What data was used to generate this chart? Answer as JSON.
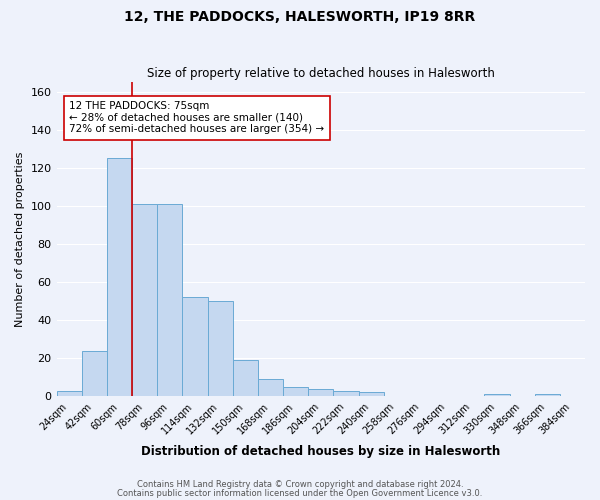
{
  "title": "12, THE PADDOCKS, HALESWORTH, IP19 8RR",
  "subtitle": "Size of property relative to detached houses in Halesworth",
  "xlabel": "Distribution of detached houses by size in Halesworth",
  "ylabel": "Number of detached properties",
  "footnote1": "Contains HM Land Registry data © Crown copyright and database right 2024.",
  "footnote2": "Contains public sector information licensed under the Open Government Licence v3.0.",
  "categories": [
    "24sqm",
    "42sqm",
    "60sqm",
    "78sqm",
    "96sqm",
    "114sqm",
    "132sqm",
    "150sqm",
    "168sqm",
    "186sqm",
    "204sqm",
    "222sqm",
    "240sqm",
    "258sqm",
    "276sqm",
    "294sqm",
    "312sqm",
    "330sqm",
    "348sqm",
    "366sqm",
    "384sqm"
  ],
  "values": [
    3,
    24,
    125,
    101,
    101,
    52,
    50,
    19,
    9,
    5,
    4,
    3,
    2,
    0,
    0,
    0,
    0,
    1,
    0,
    1,
    0
  ],
  "bar_color": "#c5d8f0",
  "bar_edge_color": "#6aaad4",
  "background_color": "#eef2fb",
  "grid_color": "#ffffff",
  "vline_x": 2.5,
  "vline_color": "#cc0000",
  "annotation_text": "12 THE PADDOCKS: 75sqm\n← 28% of detached houses are smaller (140)\n72% of semi-detached houses are larger (354) →",
  "annotation_box_color": "#ffffff",
  "annotation_box_edge": "#cc0000",
  "ylim": [
    0,
    165
  ],
  "yticks": [
    0,
    20,
    40,
    60,
    80,
    100,
    120,
    140,
    160
  ]
}
